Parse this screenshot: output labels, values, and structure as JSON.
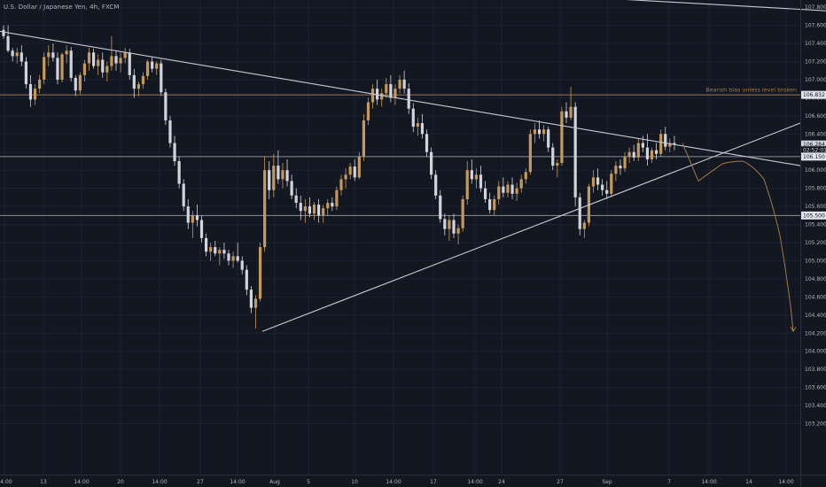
{
  "header": {
    "title": "U.S. Dollar / Japanese Yen, 4h, FXCM"
  },
  "colors": {
    "background": "#131722",
    "up": "#c49a5c",
    "down": "#d1d4dc",
    "grid": "#1c2130",
    "trendline": "#c8cad3",
    "level": "#8d8f99",
    "annotation": "#a07a48",
    "axis_text": "#b2b5be"
  },
  "chart_data": {
    "type": "candlestick",
    "symbol": "U.S. Dollar / Japanese Yen",
    "timeframe": "4h",
    "source": "FXCM",
    "y_axis": {
      "min": 103.1,
      "max": 108.3,
      "ticks": [
        "108.200",
        "108.000",
        "107.800",
        "107.600",
        "107.400",
        "107.200",
        "107.000",
        "106.800",
        "106.600",
        "106.400",
        "106.200",
        "106.000",
        "105.800",
        "105.600",
        "105.400",
        "105.200",
        "105.000",
        "104.800",
        "104.600",
        "104.400",
        "104.200",
        "104.000",
        "103.800",
        "103.600",
        "103.400",
        "103.200"
      ]
    },
    "x_axis": {
      "ticks": [
        "14:00",
        "13",
        "14:00",
        "20",
        "14:00",
        "27",
        "14:00",
        "Aug",
        "5",
        "10",
        "14:00",
        "17",
        "14:00",
        "24",
        "27",
        "Sep",
        "7",
        "14:00",
        "14",
        "14:00"
      ]
    },
    "price_labels": [
      {
        "text": "106.832",
        "value": 106.832,
        "style": "filled-light"
      },
      {
        "text": "106.284",
        "value": 106.284,
        "style": "filled-dark"
      },
      {
        "text": "02:52:01",
        "value": 106.22,
        "style": "countdown"
      },
      {
        "text": "106.150",
        "value": 106.15,
        "style": "filled-light"
      },
      {
        "text": "105.500",
        "value": 105.5,
        "style": "filled-light"
      }
    ],
    "horizontal_levels": [
      106.832,
      106.15,
      105.5
    ],
    "annotation": {
      "text": "Bearish bias unless level broken",
      "value": 106.85
    },
    "candles": [
      [
        107.55,
        107.6,
        107.45,
        107.48
      ],
      [
        107.48,
        107.6,
        107.3,
        107.32
      ],
      [
        107.32,
        107.35,
        107.2,
        107.26
      ],
      [
        107.26,
        107.35,
        107.18,
        107.3
      ],
      [
        107.3,
        107.38,
        107.15,
        107.2
      ],
      [
        107.2,
        107.25,
        106.9,
        106.95
      ],
      [
        106.95,
        107.05,
        106.7,
        106.78
      ],
      [
        106.78,
        106.95,
        106.72,
        106.9
      ],
      [
        106.9,
        107.05,
        106.85,
        107.0
      ],
      [
        107.0,
        107.3,
        106.95,
        107.25
      ],
      [
        107.25,
        107.38,
        107.15,
        107.3
      ],
      [
        107.3,
        107.4,
        107.2,
        107.24
      ],
      [
        107.24,
        107.3,
        106.95,
        107.0
      ],
      [
        107.0,
        107.3,
        106.97,
        107.28
      ],
      [
        107.28,
        107.38,
        107.18,
        107.32
      ],
      [
        107.32,
        107.36,
        106.98,
        107.02
      ],
      [
        107.02,
        107.05,
        106.82,
        106.88
      ],
      [
        106.88,
        107.08,
        106.84,
        107.05
      ],
      [
        107.05,
        107.22,
        106.98,
        107.18
      ],
      [
        107.18,
        107.35,
        107.1,
        107.3
      ],
      [
        107.3,
        107.34,
        107.12,
        107.15
      ],
      [
        107.15,
        107.28,
        107.05,
        107.22
      ],
      [
        107.22,
        107.3,
        107.02,
        107.08
      ],
      [
        107.08,
        107.2,
        106.98,
        107.15
      ],
      [
        107.15,
        107.48,
        107.1,
        107.26
      ],
      [
        107.26,
        107.32,
        107.1,
        107.18
      ],
      [
        107.18,
        107.3,
        107.08,
        107.24
      ],
      [
        107.24,
        107.35,
        107.18,
        107.3
      ],
      [
        107.3,
        107.34,
        107.0,
        107.05
      ],
      [
        107.05,
        107.12,
        106.8,
        106.9
      ],
      [
        106.9,
        106.98,
        106.82,
        106.95
      ],
      [
        106.95,
        107.08,
        106.9,
        107.04
      ],
      [
        107.04,
        107.22,
        107.0,
        107.2
      ],
      [
        107.2,
        107.25,
        107.08,
        107.12
      ],
      [
        107.12,
        107.2,
        107.05,
        107.18
      ],
      [
        107.18,
        107.22,
        106.82,
        106.86
      ],
      [
        106.86,
        106.9,
        106.5,
        106.55
      ],
      [
        106.55,
        106.6,
        106.25,
        106.3
      ],
      [
        106.3,
        106.38,
        106.05,
        106.1
      ],
      [
        106.1,
        106.15,
        105.8,
        105.85
      ],
      [
        105.85,
        105.9,
        105.55,
        105.6
      ],
      [
        105.6,
        105.68,
        105.35,
        105.42
      ],
      [
        105.42,
        105.55,
        105.25,
        105.5
      ],
      [
        105.5,
        105.62,
        105.38,
        105.45
      ],
      [
        105.45,
        105.5,
        105.2,
        105.25
      ],
      [
        105.25,
        105.3,
        105.05,
        105.1
      ],
      [
        105.1,
        105.2,
        105.0,
        105.15
      ],
      [
        105.15,
        105.22,
        105.05,
        105.08
      ],
      [
        105.08,
        105.15,
        104.95,
        105.12
      ],
      [
        105.12,
        105.2,
        105.02,
        105.08
      ],
      [
        105.08,
        105.12,
        104.95,
        105.0
      ],
      [
        105.0,
        105.1,
        104.92,
        105.05
      ],
      [
        105.05,
        105.2,
        104.98,
        105.0
      ],
      [
        105.0,
        105.05,
        104.85,
        104.9
      ],
      [
        104.9,
        104.95,
        104.62,
        104.68
      ],
      [
        104.68,
        104.72,
        104.42,
        104.48
      ],
      [
        104.48,
        104.62,
        104.25,
        104.58
      ],
      [
        104.58,
        105.2,
        104.55,
        105.15
      ],
      [
        105.15,
        106.15,
        105.1,
        106.0
      ],
      [
        106.0,
        106.1,
        105.68,
        105.78
      ],
      [
        105.78,
        106.18,
        105.7,
        106.05
      ],
      [
        106.05,
        106.22,
        105.85,
        105.9
      ],
      [
        105.9,
        106.08,
        105.8,
        106.0
      ],
      [
        106.0,
        106.12,
        105.82,
        105.88
      ],
      [
        105.88,
        105.95,
        105.68,
        105.72
      ],
      [
        105.72,
        105.8,
        105.58,
        105.64
      ],
      [
        105.64,
        105.72,
        105.45,
        105.55
      ],
      [
        105.55,
        105.68,
        105.42,
        105.6
      ],
      [
        105.6,
        105.7,
        105.48,
        105.52
      ],
      [
        105.52,
        105.65,
        105.45,
        105.62
      ],
      [
        105.62,
        105.68,
        105.42,
        105.5
      ],
      [
        105.5,
        105.62,
        105.42,
        105.58
      ],
      [
        105.58,
        105.68,
        105.5,
        105.64
      ],
      [
        105.64,
        105.7,
        105.55,
        105.6
      ],
      [
        105.6,
        105.82,
        105.56,
        105.78
      ],
      [
        105.78,
        105.95,
        105.72,
        105.9
      ],
      [
        105.9,
        106.02,
        105.8,
        105.95
      ],
      [
        105.95,
        106.08,
        105.9,
        106.04
      ],
      [
        106.04,
        106.12,
        105.88,
        105.92
      ],
      [
        105.92,
        106.2,
        105.9,
        106.15
      ],
      [
        106.15,
        106.62,
        106.1,
        106.55
      ],
      [
        106.55,
        106.8,
        106.5,
        106.75
      ],
      [
        106.75,
        106.95,
        106.68,
        106.9
      ],
      [
        106.9,
        107.0,
        106.72,
        106.78
      ],
      [
        106.78,
        106.9,
        106.7,
        106.85
      ],
      [
        106.85,
        107.02,
        106.8,
        106.95
      ],
      [
        106.95,
        107.05,
        106.75,
        106.8
      ],
      [
        106.8,
        106.95,
        106.72,
        106.9
      ],
      [
        106.9,
        107.05,
        106.85,
        107.0
      ],
      [
        107.0,
        107.1,
        106.85,
        106.9
      ],
      [
        106.9,
        106.96,
        106.62,
        106.68
      ],
      [
        106.68,
        106.74,
        106.42,
        106.48
      ],
      [
        106.48,
        106.58,
        106.38,
        106.52
      ],
      [
        106.52,
        106.62,
        106.35,
        106.4
      ],
      [
        106.4,
        106.45,
        106.15,
        106.2
      ],
      [
        106.2,
        106.25,
        105.9,
        105.95
      ],
      [
        105.95,
        106.0,
        105.68,
        105.72
      ],
      [
        105.72,
        105.78,
        105.42,
        105.46
      ],
      [
        105.46,
        105.52,
        105.28,
        105.35
      ],
      [
        105.35,
        105.5,
        105.22,
        105.45
      ],
      [
        105.45,
        105.52,
        105.25,
        105.3
      ],
      [
        105.3,
        105.4,
        105.18,
        105.36
      ],
      [
        105.36,
        105.72,
        105.32,
        105.68
      ],
      [
        105.68,
        106.1,
        105.62,
        106.0
      ],
      [
        106.0,
        106.12,
        105.85,
        105.9
      ],
      [
        105.9,
        106.02,
        105.8,
        105.95
      ],
      [
        105.95,
        106.05,
        105.76,
        105.8
      ],
      [
        105.8,
        105.88,
        105.64,
        105.68
      ],
      [
        105.68,
        105.75,
        105.52,
        105.56
      ],
      [
        105.56,
        105.72,
        105.5,
        105.68
      ],
      [
        105.68,
        105.88,
        105.62,
        105.82
      ],
      [
        105.82,
        105.92,
        105.7,
        105.75
      ],
      [
        105.75,
        105.88,
        105.7,
        105.84
      ],
      [
        105.84,
        105.92,
        105.68,
        105.74
      ],
      [
        105.74,
        105.86,
        105.66,
        105.8
      ],
      [
        105.8,
        105.95,
        105.75,
        105.9
      ],
      [
        105.9,
        106.02,
        105.85,
        105.98
      ],
      [
        105.98,
        106.45,
        105.95,
        106.4
      ],
      [
        106.4,
        106.52,
        106.3,
        106.45
      ],
      [
        106.45,
        106.55,
        106.35,
        106.4
      ],
      [
        106.4,
        106.5,
        106.32,
        106.45
      ],
      [
        106.45,
        106.48,
        106.2,
        106.25
      ],
      [
        106.25,
        106.3,
        106.0,
        106.05
      ],
      [
        106.05,
        106.12,
        105.92,
        106.08
      ],
      [
        106.08,
        106.7,
        106.05,
        106.65
      ],
      [
        106.65,
        106.75,
        106.52,
        106.58
      ],
      [
        106.58,
        106.92,
        106.55,
        106.7
      ],
      [
        106.7,
        106.75,
        105.6,
        105.7
      ],
      [
        105.7,
        105.75,
        105.28,
        105.35
      ],
      [
        105.35,
        105.45,
        105.25,
        105.42
      ],
      [
        105.42,
        105.85,
        105.38,
        105.82
      ],
      [
        105.82,
        106.0,
        105.75,
        105.92
      ],
      [
        105.92,
        106.02,
        105.78,
        105.84
      ],
      [
        105.84,
        105.9,
        105.72,
        105.78
      ],
      [
        105.78,
        105.88,
        105.68,
        105.74
      ],
      [
        105.74,
        106.0,
        105.7,
        105.96
      ],
      [
        105.96,
        106.1,
        105.88,
        106.05
      ],
      [
        106.05,
        106.12,
        105.95,
        106.02
      ],
      [
        106.02,
        106.2,
        105.98,
        106.15
      ],
      [
        106.15,
        106.25,
        106.08,
        106.2
      ],
      [
        106.2,
        106.28,
        106.1,
        106.14
      ],
      [
        106.14,
        106.35,
        106.1,
        106.3
      ],
      [
        106.3,
        106.38,
        106.2,
        106.25
      ],
      [
        106.25,
        106.4,
        106.05,
        106.12
      ],
      [
        106.12,
        106.25,
        106.08,
        106.22
      ],
      [
        106.22,
        106.3,
        106.12,
        106.18
      ],
      [
        106.18,
        106.45,
        106.15,
        106.4
      ],
      [
        106.4,
        106.48,
        106.22,
        106.26
      ],
      [
        106.26,
        106.35,
        106.2,
        106.3
      ],
      [
        106.3,
        106.38,
        106.22,
        106.28
      ]
    ],
    "trendlines": [
      {
        "name": "upper-descending",
        "from": [
          -10,
          108.28
        ],
        "to": [
          933,
          107.76
        ]
      },
      {
        "name": "descending-resistance",
        "from": [
          -10,
          107.55
        ],
        "to": [
          903,
          106.05
        ]
      },
      {
        "name": "ascending-support",
        "from": [
          296,
          104.22
        ],
        "to": [
          903,
          106.52
        ]
      }
    ],
    "projection": {
      "points": [
        [
          770,
          106.3
        ],
        [
          788,
          105.88
        ],
        [
          803,
          105.99
        ],
        [
          815,
          106.07
        ],
        [
          826,
          106.1
        ],
        [
          838,
          106.1
        ],
        [
          850,
          106.05
        ],
        [
          862,
          105.9
        ],
        [
          872,
          105.62
        ],
        [
          880,
          105.28
        ],
        [
          887,
          104.88
        ],
        [
          892,
          104.5
        ],
        [
          895,
          104.22
        ]
      ],
      "arrow_target": [
        895,
        104.22
      ]
    }
  }
}
